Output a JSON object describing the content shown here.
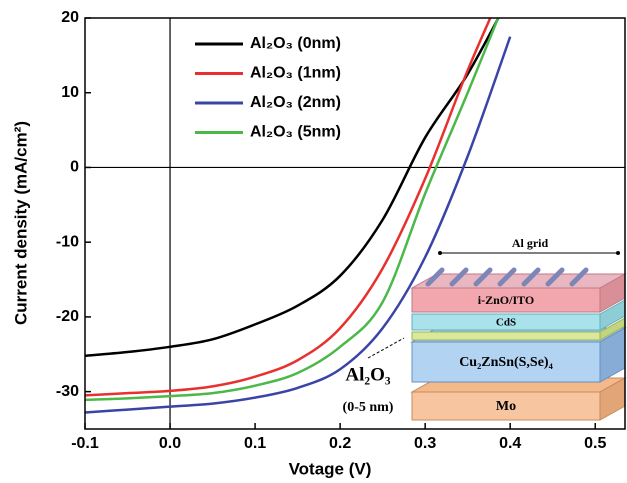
{
  "chart_data": {
    "type": "line",
    "x_label": "Votage (V)",
    "y_label": "Current density (mA/cm²)",
    "x": [
      -0.1,
      -0.05,
      0,
      0.05,
      0.1,
      0.15,
      0.2,
      0.25,
      0.3,
      0.35,
      0.4
    ],
    "series": [
      {
        "name": "Al₂O₃ (0nm)",
        "color": "#000000",
        "values": [
          -25.2,
          -24.7,
          -24.0,
          -23.0,
          -21.0,
          -18.5,
          -14.5,
          -7.0,
          4.0,
          12.5,
          23.0
        ]
      },
      {
        "name": "Al₂O₃ (1nm)",
        "color": "#e8312f",
        "values": [
          -30.5,
          -30.2,
          -29.9,
          -29.3,
          -28.0,
          -25.8,
          -21.5,
          -13.5,
          -1.5,
          13.0,
          26.0
        ]
      },
      {
        "name": "Al₂O₃ (2nm)",
        "color": "#3a44a6",
        "values": [
          -32.8,
          -32.4,
          -32.0,
          -31.6,
          -30.8,
          -29.5,
          -27.0,
          -21.5,
          -12.0,
          1.5,
          17.5
        ]
      },
      {
        "name": "Al₂O₃ (5nm)",
        "color": "#4cb848",
        "values": [
          -31.1,
          -30.9,
          -30.6,
          -30.2,
          -29.2,
          -27.5,
          -24.0,
          -18.0,
          -3.5,
          10.0,
          24.0
        ]
      }
    ],
    "xlim": [
      -0.1,
      0.535
    ],
    "ylim": [
      -35,
      20
    ],
    "xticks": [
      -0.1,
      {
        "value": 0,
        "label": "0.0"
      },
      0.1,
      0.2,
      0.3,
      0.4,
      0.5
    ],
    "yticks": [
      -30,
      -20,
      -10,
      0,
      10,
      20
    ],
    "legend": "upper left",
    "inset": {
      "grid_label": "Al grid",
      "layers": [
        "i-ZnO/ITO",
        "CdS",
        "Cu₂ZnSn(S,Se)₄",
        "Mo"
      ],
      "oxide_label": "Al₂O₃",
      "oxide_thickness": "(0-5 nm)"
    }
  }
}
